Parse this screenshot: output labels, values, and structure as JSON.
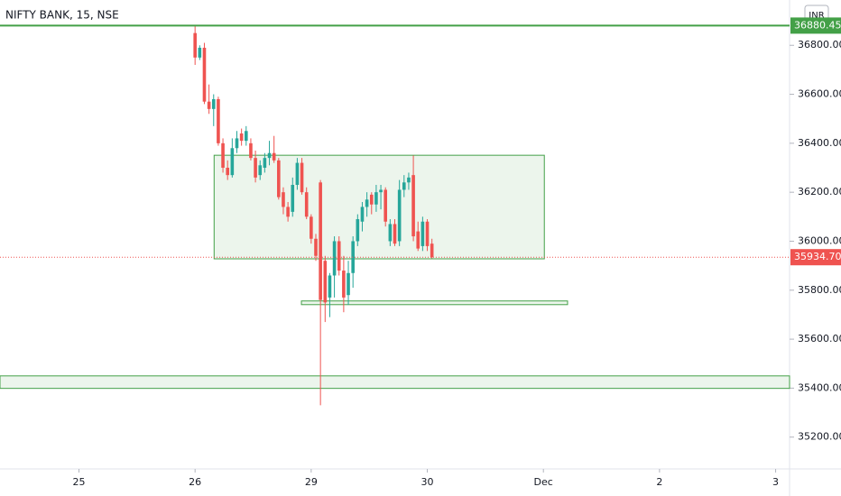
{
  "chart_data": {
    "type": "candlestick",
    "title": "NIFTY BANK, 15, NSE",
    "currency": "INR",
    "up_color": "#26a69a",
    "down_color": "#ef5350",
    "xlim": [
      -42,
      128
    ],
    "xticks": [
      {
        "value": -25,
        "label": "25"
      },
      {
        "value": 0,
        "label": "26"
      },
      {
        "value": 25,
        "label": "29"
      },
      {
        "value": 50,
        "label": "30"
      },
      {
        "value": 75,
        "label": "Dec"
      },
      {
        "value": 100,
        "label": "2"
      },
      {
        "value": 125,
        "label": "3"
      }
    ],
    "ylim": [
      35070,
      36985
    ],
    "yticks": [
      {
        "value": 35200,
        "label": "35200.00"
      },
      {
        "value": 35400,
        "label": "35400.00"
      },
      {
        "value": 35600,
        "label": "35600.00"
      },
      {
        "value": 35800,
        "label": "35800.00"
      },
      {
        "value": 36000,
        "label": "36000.00"
      },
      {
        "value": 36200,
        "label": "36200.00"
      },
      {
        "value": 36400,
        "label": "36400.00"
      },
      {
        "value": 36600,
        "label": "36600.00"
      },
      {
        "value": 36800,
        "label": "36800.00"
      }
    ],
    "x": [
      0,
      1,
      2,
      3,
      4,
      5,
      6,
      7,
      8,
      9,
      10,
      11,
      12,
      13,
      14,
      15,
      16,
      17,
      18,
      19,
      20,
      21,
      22,
      23,
      24,
      25,
      26,
      27,
      28,
      29,
      30,
      31,
      32,
      33,
      34,
      35,
      36,
      37,
      38,
      39,
      40,
      41,
      42,
      43,
      44,
      45,
      46,
      47,
      48,
      49,
      50,
      51
    ],
    "open": [
      36850,
      36750,
      36790,
      36570,
      36540,
      36580,
      36400,
      36300,
      36270,
      36380,
      36440,
      36410,
      36400,
      36340,
      36270,
      36300,
      36340,
      36360,
      36330,
      36200,
      36140,
      36120,
      36230,
      36320,
      36200,
      36100,
      36010,
      36240,
      35920,
      35770,
      35860,
      36000,
      35880,
      35780,
      35870,
      36000,
      36080,
      36140,
      36190,
      36150,
      36200,
      36210,
      36000,
      36070,
      36000,
      36210,
      36240,
      36270,
      36040,
      35980,
      36080,
      35990
    ],
    "high": [
      36880,
      36800,
      36810,
      36640,
      36600,
      36590,
      36420,
      36330,
      36420,
      36450,
      36460,
      36470,
      36420,
      36370,
      36330,
      36360,
      36410,
      36430,
      36340,
      36220,
      36160,
      36260,
      36340,
      36340,
      36220,
      36110,
      36030,
      36250,
      35940,
      35870,
      36020,
      36020,
      35940,
      35920,
      36020,
      36110,
      36160,
      36200,
      36200,
      36230,
      36230,
      36220,
      36090,
      36090,
      36250,
      36270,
      36280,
      36350,
      36080,
      36100,
      36090,
      36010
    ],
    "low": [
      36720,
      36740,
      36560,
      36520,
      36470,
      36390,
      36280,
      36250,
      36260,
      36360,
      36390,
      36390,
      36330,
      36240,
      36250,
      36280,
      36310,
      36320,
      36170,
      36110,
      36080,
      36100,
      36210,
      36190,
      36090,
      35990,
      35920,
      35330,
      35670,
      35690,
      35770,
      35860,
      35710,
      35740,
      35810,
      35980,
      36040,
      36100,
      36110,
      36120,
      36130,
      36060,
      35980,
      35980,
      35980,
      36180,
      36210,
      36000,
      35960,
      35960,
      35960,
      35930
    ],
    "close": [
      36750,
      36790,
      36570,
      36540,
      36580,
      36400,
      36300,
      36270,
      36380,
      36420,
      36410,
      36450,
      36340,
      36260,
      36310,
      36340,
      36360,
      36330,
      36180,
      36140,
      36100,
      36230,
      36320,
      36200,
      36100,
      36010,
      35940,
      35760,
      35750,
      35860,
      36000,
      35880,
      35770,
      35870,
      36000,
      36090,
      36140,
      36170,
      36150,
      36200,
      36210,
      36080,
      36070,
      35990,
      36210,
      36240,
      36260,
      36020,
      35970,
      36080,
      35980,
      35934.7
    ],
    "zones": [
      {
        "x0": 4.1,
        "x1": 75.2,
        "y0": 35928,
        "y1": 36351
      },
      {
        "x0": 22.9,
        "x1": 80.2,
        "y0": 35741,
        "y1": 35756
      },
      {
        "x0": -42,
        "x1": 128,
        "y0": 35399,
        "y1": 35450
      }
    ],
    "hlines": [
      {
        "value": 36880.45,
        "label": "36880.45",
        "color": "#43a047",
        "style": "solid"
      },
      {
        "value": 35934.7,
        "label": "35934.70",
        "color": "#ef5350",
        "style": "dotted"
      }
    ],
    "zone_color": "#43a047"
  }
}
